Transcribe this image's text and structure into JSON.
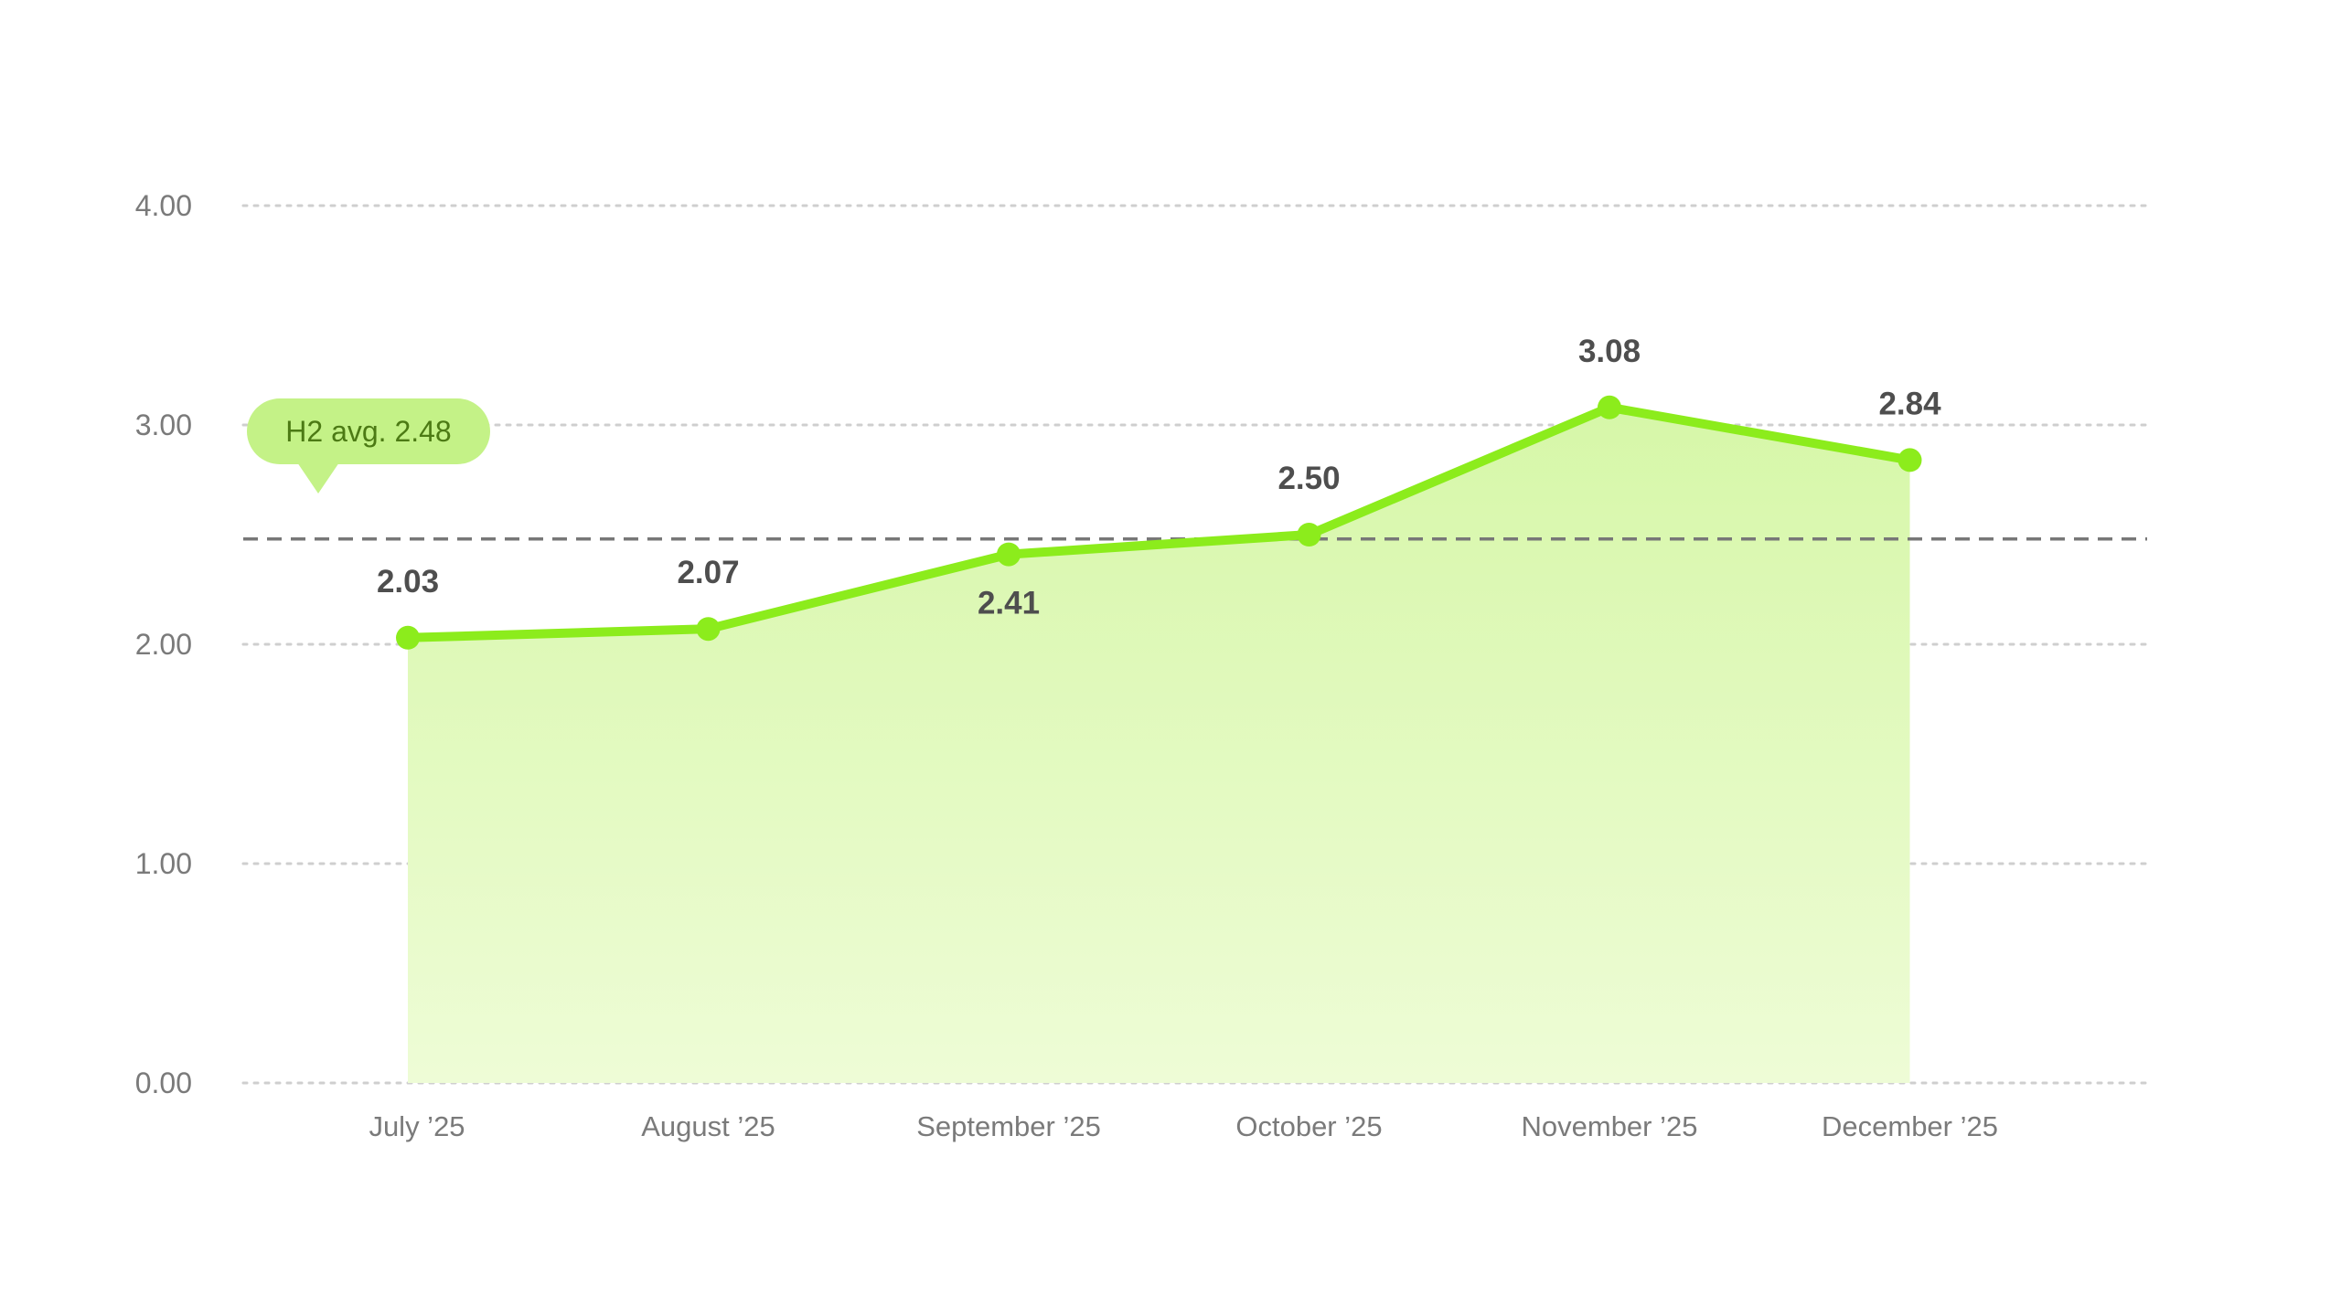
{
  "chart_data": {
    "type": "area",
    "categories": [
      "July ’25",
      "August ’25",
      "September ’25",
      "October ’25",
      "November ’25",
      "December ’25"
    ],
    "series": [
      {
        "values": [
          2.03,
          2.07,
          2.41,
          2.5,
          3.08,
          2.84
        ],
        "labels": [
          "2.03",
          "2.07",
          "2.41",
          "2.50",
          "3.08",
          "2.84"
        ],
        "color": "#8cec1c"
      }
    ],
    "ylim": [
      0,
      4
    ],
    "yticks": [
      0,
      1,
      2,
      3,
      4
    ],
    "ytick_labels": [
      "0.00",
      "1.00",
      "2.00",
      "3.00",
      "4.00"
    ],
    "grid": true,
    "reference_line": {
      "value": 2.48,
      "label": "H2 avg. 2.48",
      "color": "#777777"
    },
    "colors": {
      "line": "#8cec1c",
      "fill_top": "#d6f7a8",
      "fill_bottom": "#eefcd6",
      "badge_bg": "#c4f287",
      "badge_text": "#4c7a14",
      "grid": "#cfcfcf",
      "data_label": "#4e4e4e",
      "tick_label": "#7a7a7a"
    }
  }
}
